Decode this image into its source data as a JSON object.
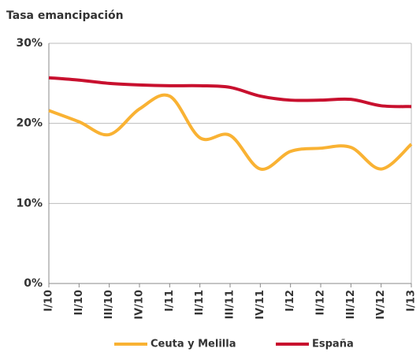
{
  "chart_data": {
    "type": "line",
    "title": "Tasa emancipación",
    "categories": [
      "I/10",
      "II/10",
      "III/10",
      "IV/10",
      "I/11",
      "II/11",
      "III/11",
      "IV/11",
      "I/12",
      "II/12",
      "III/12",
      "IV/12",
      "I/13"
    ],
    "series": [
      {
        "name": "Ceuta y Melilla",
        "color": "#f9b233",
        "values": [
          21.6,
          20.2,
          18.6,
          21.8,
          23.4,
          18.2,
          18.5,
          14.3,
          16.5,
          16.9,
          17.0,
          14.3,
          17.4
        ]
      },
      {
        "name": "España",
        "color": "#c8102e",
        "values": [
          25.7,
          25.4,
          25.0,
          24.8,
          24.7,
          24.7,
          24.5,
          23.4,
          22.9,
          22.9,
          23.0,
          22.2,
          22.1
        ]
      }
    ],
    "ylim": [
      0,
      30
    ],
    "yticks": [
      {
        "value": 0,
        "label": "0%"
      },
      {
        "value": 10,
        "label": "10%"
      },
      {
        "value": 20,
        "label": "20%"
      },
      {
        "value": 30,
        "label": "30%"
      }
    ],
    "grid": true,
    "legend": "bottom"
  }
}
